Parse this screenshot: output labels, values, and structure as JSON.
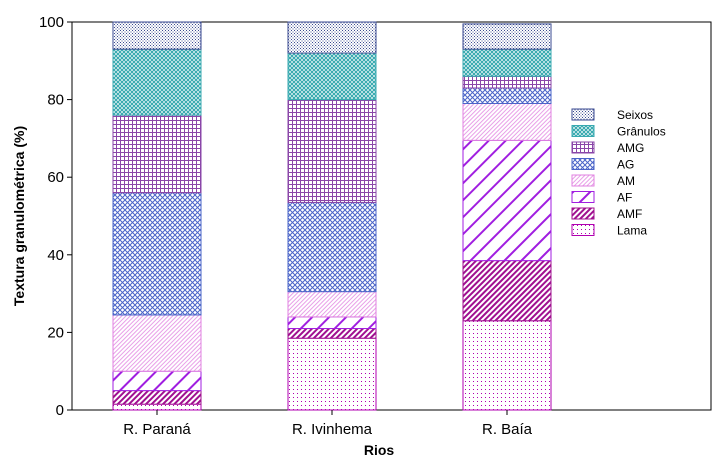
{
  "chart_data": {
    "type": "bar",
    "stacked": true,
    "xlabel": "Rios",
    "ylabel": "Textura granulométrica (%)",
    "ylim": [
      0,
      100
    ],
    "yticks": [
      "0",
      "20",
      "40",
      "60",
      "80",
      "100"
    ],
    "categories": [
      "R. Paraná",
      "R. Ivinhema",
      "R. Baía"
    ],
    "legend_position": "right",
    "series": [
      {
        "name": "Lama",
        "color": "#b000b0",
        "pattern": "dots",
        "values": [
          1.5,
          18.5,
          23
        ]
      },
      {
        "name": "AMF",
        "color": "#a01090",
        "pattern": "dense-diagonal",
        "values": [
          3.5,
          2.5,
          15.5
        ]
      },
      {
        "name": "AF",
        "color": "#a01ee0",
        "pattern": "diagonal",
        "values": [
          5,
          3,
          31
        ]
      },
      {
        "name": "AM",
        "color": "#e080e0",
        "pattern": "fine",
        "values": [
          14.5,
          6.5,
          9.5
        ]
      },
      {
        "name": "AG",
        "color": "#4a64c8",
        "pattern": "crosshatch",
        "values": [
          31.5,
          23,
          4
        ]
      },
      {
        "name": "AMG",
        "color": "#8a46a8",
        "pattern": "grid",
        "values": [
          20,
          26.5,
          3
        ]
      },
      {
        "name": "Grânulos",
        "color": "#38aab0",
        "pattern": "mesh",
        "values": [
          17,
          12,
          7
        ]
      },
      {
        "name": "Seixos",
        "color": "#3a4a90",
        "pattern": "stipple",
        "values": [
          7,
          8,
          6.5
        ]
      }
    ],
    "legend_order": [
      "Seixos",
      "Grânulos",
      "AMG",
      "AG",
      "AM",
      "AF",
      "AMF",
      "Lama"
    ]
  }
}
